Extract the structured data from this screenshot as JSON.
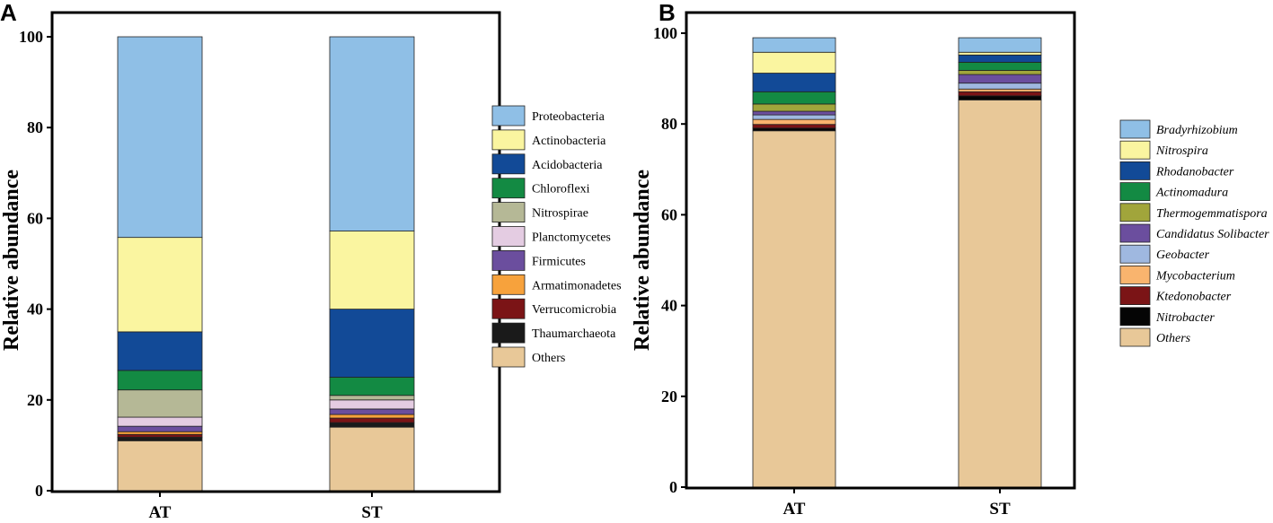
{
  "figure": {
    "panels": [
      {
        "letter": "A",
        "ylabel": "Relative abundance",
        "xlabel": "",
        "yticks": [
          "0",
          "20",
          "40",
          "60",
          "80",
          "100"
        ]
      },
      {
        "letter": "B",
        "ylabel": "Relative abundance",
        "xlabel": "",
        "yticks": [
          "0",
          "20",
          "40",
          "60",
          "80",
          "100"
        ]
      }
    ]
  },
  "chart_data": [
    {
      "type": "bar",
      "stacked": true,
      "title": "",
      "xlabel": "",
      "ylabel": "Relative abundance",
      "ylim": [
        0,
        100
      ],
      "categories": [
        "AT",
        "ST"
      ],
      "legend_position": "right",
      "legend_italic": false,
      "series": [
        {
          "name": "Others",
          "color": "#E8C898",
          "values": [
            11.0,
            14.0
          ]
        },
        {
          "name": "Thaumarchaeota",
          "color": "#1A1A1A",
          "values": [
            0.8,
            1.0
          ]
        },
        {
          "name": "Verrucomicrobia",
          "color": "#7B1416",
          "values": [
            0.6,
            1.0
          ]
        },
        {
          "name": "Armatimonadetes",
          "color": "#F7A23C",
          "values": [
            0.6,
            0.8
          ]
        },
        {
          "name": "Firmicutes",
          "color": "#6B4E9E",
          "values": [
            1.2,
            1.2
          ]
        },
        {
          "name": "Planctomycetes",
          "color": "#E4CCE2",
          "values": [
            2.0,
            2.0
          ]
        },
        {
          "name": "Nitrospirae",
          "color": "#B5B896",
          "values": [
            6.0,
            1.0
          ]
        },
        {
          "name": "Chloroflexi",
          "color": "#138A43",
          "values": [
            4.3,
            4.0
          ]
        },
        {
          "name": "Acidobacteria",
          "color": "#124A97",
          "values": [
            8.5,
            15.0
          ]
        },
        {
          "name": "Actinobacteria",
          "color": "#FAF5A0",
          "values": [
            20.8,
            17.2
          ]
        },
        {
          "name": "Proteobacteria",
          "color": "#8FBFE6",
          "values": [
            44.2,
            42.8
          ]
        }
      ]
    },
    {
      "type": "bar",
      "stacked": true,
      "title": "",
      "xlabel": "",
      "ylabel": "Relative abundance",
      "ylim": [
        0,
        100
      ],
      "categories": [
        "AT",
        "ST"
      ],
      "legend_position": "right",
      "legend_italic": true,
      "series": [
        {
          "name": "Others",
          "color": "#E8C898",
          "values": [
            78.5,
            85.3
          ]
        },
        {
          "name": "Nitrobacter",
          "color": "#050505",
          "values": [
            0.6,
            0.9
          ]
        },
        {
          "name": "Ktedonobacter",
          "color": "#7B1416",
          "values": [
            0.8,
            0.9
          ]
        },
        {
          "name": "Mycobacterium",
          "color": "#F9B46E",
          "values": [
            1.1,
            0.6
          ]
        },
        {
          "name": "Geobacter",
          "color": "#9FB8E0",
          "values": [
            1.0,
            1.3
          ]
        },
        {
          "name": "Candidatus Solibacter",
          "color": "#6B4E9E",
          "values": [
            0.8,
            1.9
          ]
        },
        {
          "name": "Thermogemmatispora",
          "color": "#A1A53B",
          "values": [
            1.6,
            0.9
          ]
        },
        {
          "name": "Actinomadura",
          "color": "#138A43",
          "values": [
            2.7,
            1.8
          ]
        },
        {
          "name": "Rhodanobacter",
          "color": "#124A97",
          "values": [
            4.1,
            1.6
          ]
        },
        {
          "name": "Nitrospira",
          "color": "#FAF5A0",
          "values": [
            4.6,
            0.6
          ]
        },
        {
          "name": "Bradyrhizobium",
          "color": "#8FBFE6",
          "values": [
            3.2,
            3.2
          ]
        }
      ]
    }
  ]
}
